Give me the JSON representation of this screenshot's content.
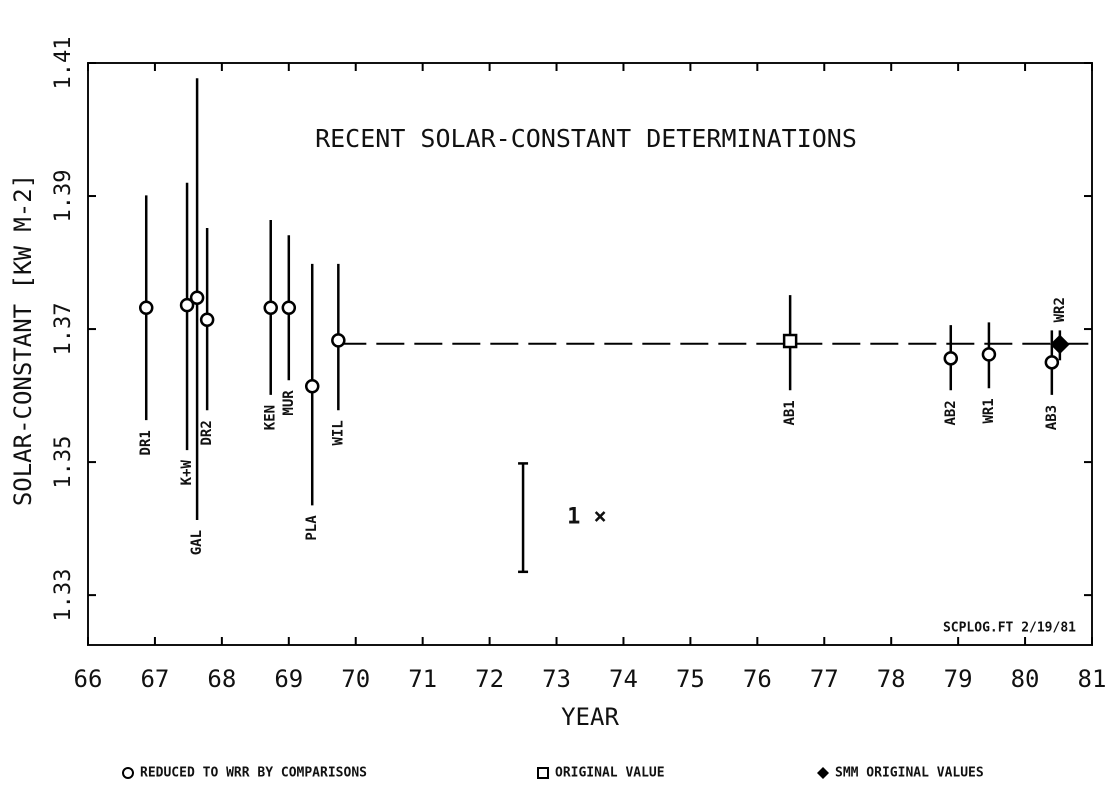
{
  "chart_data": {
    "type": "errorbar",
    "title": "RECENT SOLAR-CONSTANT DETERMINATIONS",
    "xlabel": "YEAR",
    "ylabel": "SOLAR-CONSTANT [KW M-2]",
    "xlim": [
      66,
      81
    ],
    "xticks": [
      66,
      67,
      68,
      69,
      70,
      71,
      72,
      73,
      74,
      75,
      76,
      77,
      78,
      79,
      80,
      81
    ],
    "ylim": [
      1.3225,
      1.41
    ],
    "yticks": [
      1.33,
      1.35,
      1.37,
      1.39,
      1.41
    ],
    "labels": [
      "DR1",
      "K+W",
      "GAL",
      "DR2",
      "KEN",
      "MUR",
      "PLA",
      "WIL",
      "AB1",
      "AB2",
      "WR1",
      "AB3",
      "WR2"
    ],
    "x": [
      66.87,
      67.48,
      67.63,
      67.78,
      68.73,
      69.0,
      69.35,
      69.74,
      76.49,
      78.89,
      79.46,
      80.4,
      80.52
    ],
    "values": [
      1.3732,
      1.3736,
      1.3747,
      1.3714,
      1.3732,
      1.3732,
      1.3614,
      1.3683,
      1.3682,
      1.3656,
      1.3662,
      1.365,
      1.3677
    ],
    "upper": [
      1.3901,
      1.392,
      1.4077,
      1.3852,
      1.3864,
      1.3841,
      1.3798,
      1.3798,
      1.3751,
      1.3706,
      1.371,
      1.3698,
      1.3698
    ],
    "lower": [
      1.3563,
      1.3518,
      1.3413,
      1.3578,
      1.3601,
      1.3623,
      1.3435,
      1.3578,
      1.3608,
      1.3608,
      1.3611,
      1.3601,
      1.3653
    ],
    "markers": [
      "circle",
      "circle",
      "circle",
      "circle",
      "circle",
      "circle",
      "circle",
      "circle",
      "square",
      "circle",
      "circle",
      "circle",
      "diamond"
    ],
    "reference_line": {
      "value": 1.3678,
      "x": [
        69.74,
        81
      ]
    },
    "scale_bar": {
      "x": 72.5,
      "y": [
        1.3335,
        1.3498
      ],
      "label": "1 ×"
    },
    "footnote": "SCPLOG.FT 2/19/81",
    "legend": [
      "REDUCED TO WRR BY COMPARISONS",
      "ORIGINAL VALUE",
      "SMM ORIGINAL VALUES"
    ],
    "color": "#000000"
  }
}
